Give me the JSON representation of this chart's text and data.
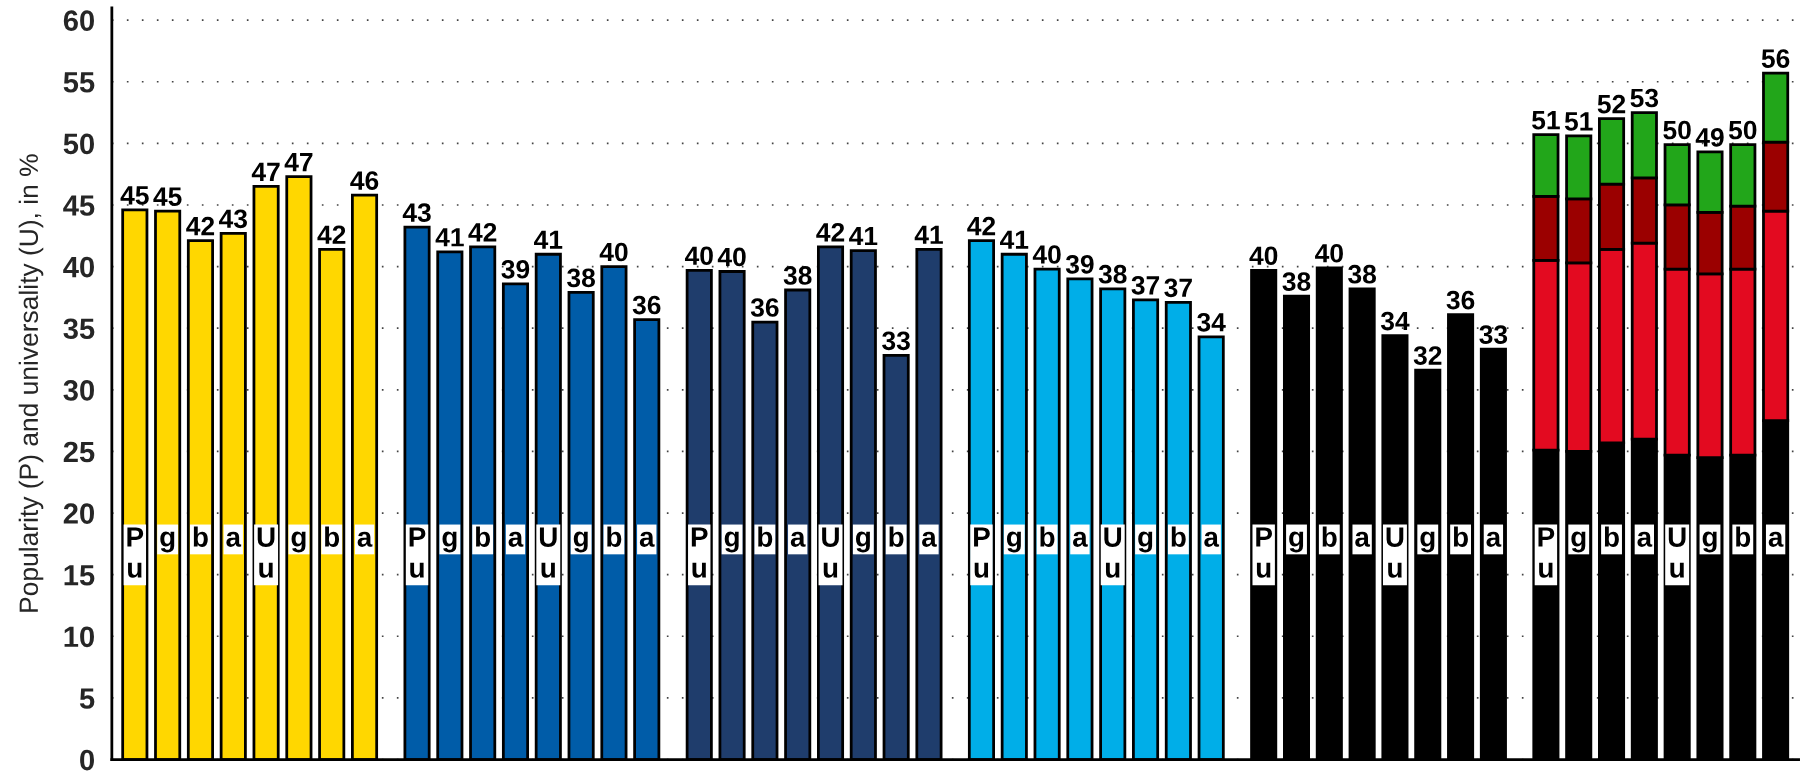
{
  "chart_data": {
    "type": "bar",
    "stacked": true,
    "ylabel": "Popularity (P) and universality (U), in %",
    "categories": [
      "P\nu",
      "g",
      "b",
      "a",
      "U\nu",
      "g",
      "b",
      "a",
      null,
      "P\nu",
      "g",
      "b",
      "a",
      "U\nu",
      "g",
      "b",
      "a",
      null,
      "P\nu",
      "g",
      "b",
      "a",
      "U\nu",
      "g",
      "b",
      "a",
      null,
      "P\nu",
      "g",
      "b",
      "a",
      "U\nu",
      "g",
      "b",
      "a",
      null,
      "P\nu",
      "g",
      "b",
      "a",
      "U\nu",
      "g",
      "b",
      "a",
      null,
      "P\nu",
      "g",
      "b",
      "a",
      "U\nu",
      "g",
      "b",
      "a"
    ],
    "series": [
      {
        "color": "#ffd700",
        "values": [
          44.6,
          44.5,
          42.1,
          42.7,
          46.5,
          47.3,
          41.4,
          45.8,
          null,
          null,
          null,
          null,
          null,
          null,
          null,
          null,
          null,
          null,
          null,
          null,
          null,
          null,
          null,
          null,
          null,
          null,
          null,
          null,
          null,
          null,
          null,
          null,
          null,
          null,
          null,
          null,
          null,
          null,
          null,
          null,
          null,
          null,
          null,
          null,
          null,
          null,
          null,
          null,
          null,
          null,
          null,
          null,
          null
        ]
      },
      {
        "color": "#005ca8",
        "values": [
          null,
          null,
          null,
          null,
          null,
          null,
          null,
          null,
          null,
          43.2,
          41.2,
          41.6,
          38.6,
          41.0,
          37.9,
          40.0,
          35.7,
          null,
          null,
          null,
          null,
          null,
          null,
          null,
          null,
          null,
          null,
          null,
          null,
          null,
          null,
          null,
          null,
          null,
          null,
          null,
          null,
          null,
          null,
          null,
          null,
          null,
          null,
          null,
          null,
          null,
          null,
          null,
          null,
          null,
          null,
          null,
          null
        ]
      },
      {
        "color": "#1f3d6c",
        "values": [
          null,
          null,
          null,
          null,
          null,
          null,
          null,
          null,
          null,
          null,
          null,
          null,
          null,
          null,
          null,
          null,
          null,
          null,
          39.7,
          39.6,
          35.5,
          38.1,
          41.6,
          41.3,
          32.8,
          41.4,
          null,
          null,
          null,
          null,
          null,
          null,
          null,
          null,
          null,
          null,
          null,
          null,
          null,
          null,
          null,
          null,
          null,
          null,
          null,
          null,
          null,
          null,
          null,
          null,
          null,
          null,
          null
        ]
      },
      {
        "color": "#00aee8",
        "values": [
          null,
          null,
          null,
          null,
          null,
          null,
          null,
          null,
          null,
          null,
          null,
          null,
          null,
          null,
          null,
          null,
          null,
          null,
          null,
          null,
          null,
          null,
          null,
          null,
          null,
          null,
          null,
          42.1,
          41.0,
          39.8,
          39.0,
          38.2,
          37.3,
          37.1,
          34.3,
          null,
          null,
          null,
          null,
          null,
          null,
          null,
          null,
          null,
          null,
          null,
          null,
          null,
          null,
          null,
          null,
          null,
          null
        ]
      },
      {
        "color": "#000000",
        "values": [
          null,
          null,
          null,
          null,
          null,
          null,
          null,
          null,
          null,
          null,
          null,
          null,
          null,
          null,
          null,
          null,
          null,
          null,
          null,
          null,
          null,
          null,
          null,
          null,
          null,
          null,
          null,
          null,
          null,
          null,
          null,
          null,
          null,
          null,
          null,
          null,
          39.7,
          37.6,
          39.9,
          38.2,
          34.4,
          31.6,
          36.1,
          33.3,
          null,
          25.1,
          25.0,
          25.7,
          26.0,
          24.7,
          24.5,
          24.7,
          27.5
        ]
      },
      {
        "color": "#e30a20",
        "values": [
          null,
          null,
          null,
          null,
          null,
          null,
          null,
          null,
          null,
          null,
          null,
          null,
          null,
          null,
          null,
          null,
          null,
          null,
          null,
          null,
          null,
          null,
          null,
          null,
          null,
          null,
          null,
          null,
          null,
          null,
          null,
          null,
          null,
          null,
          null,
          null,
          null,
          null,
          null,
          null,
          null,
          null,
          null,
          null,
          null,
          15.4,
          15.3,
          15.7,
          15.9,
          15.1,
          14.9,
          15.1,
          17.0
        ]
      },
      {
        "color": "#9b0000",
        "values": [
          null,
          null,
          null,
          null,
          null,
          null,
          null,
          null,
          null,
          null,
          null,
          null,
          null,
          null,
          null,
          null,
          null,
          null,
          null,
          null,
          null,
          null,
          null,
          null,
          null,
          null,
          null,
          null,
          null,
          null,
          null,
          null,
          null,
          null,
          null,
          null,
          null,
          null,
          null,
          null,
          null,
          null,
          null,
          null,
          null,
          5.2,
          5.2,
          5.3,
          5.3,
          5.2,
          5.0,
          5.1,
          5.6
        ]
      },
      {
        "color": "#22a61a",
        "values": [
          null,
          null,
          null,
          null,
          null,
          null,
          null,
          null,
          null,
          null,
          null,
          null,
          null,
          null,
          null,
          null,
          null,
          null,
          null,
          null,
          null,
          null,
          null,
          null,
          null,
          null,
          null,
          null,
          null,
          null,
          null,
          null,
          null,
          null,
          null,
          null,
          null,
          null,
          null,
          null,
          null,
          null,
          null,
          null,
          null,
          5.0,
          5.1,
          5.3,
          5.3,
          4.9,
          4.9,
          5.0,
          5.6
        ]
      }
    ],
    "totals": [
      "45",
      "45",
      "42",
      "43",
      "47",
      "47",
      "42",
      "46",
      null,
      "43",
      "41",
      "42",
      "39",
      "41",
      "38",
      "40",
      "36",
      null,
      "40",
      "40",
      "36",
      "38",
      "42",
      "41",
      "33",
      "41",
      null,
      "42",
      "41",
      "40",
      "39",
      "38",
      "37",
      "37",
      "34",
      null,
      "40",
      "38",
      "40",
      "38",
      "34",
      "32",
      "36",
      "33",
      null,
      "51",
      "51",
      "52",
      "53",
      "50",
      "49",
      "50",
      "56"
    ],
    "ylim": [
      0,
      61
    ],
    "yticks": [
      0,
      5,
      10,
      15,
      20,
      25,
      30,
      35,
      40,
      45,
      50,
      55,
      60
    ],
    "grid": "y"
  }
}
